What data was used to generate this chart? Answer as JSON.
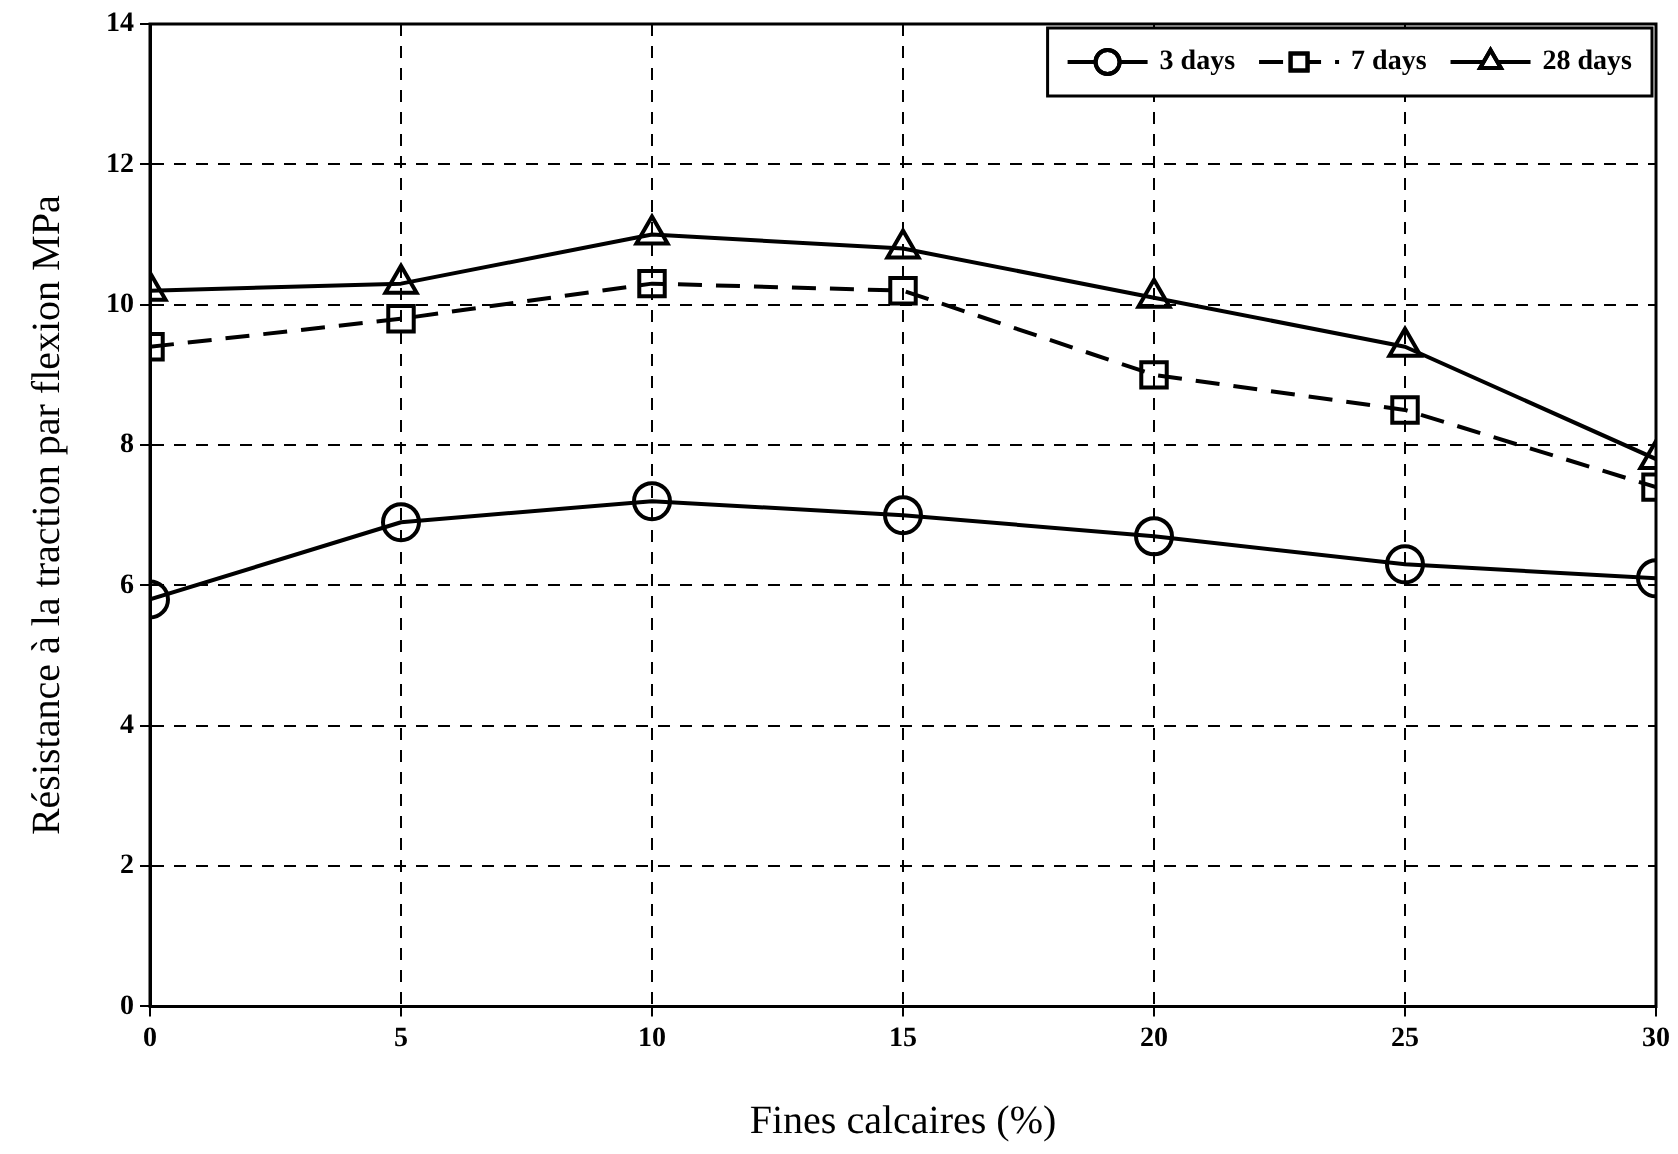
{
  "chart_data": {
    "type": "line",
    "xlabel": "Fines calcaires (%)",
    "ylabel": "Résistance à la traction par flexion MPa",
    "x": [
      0,
      5,
      10,
      15,
      20,
      25,
      30
    ],
    "series": [
      {
        "name": "3 days",
        "color": "#000000",
        "marker": "circle",
        "line_style": "solid",
        "values": [
          5.8,
          6.9,
          7.2,
          7.0,
          6.7,
          6.3,
          6.1
        ]
      },
      {
        "name": "7 days",
        "color": "#000000",
        "marker": "square",
        "line_style": "dashed",
        "values": [
          9.4,
          9.8,
          10.3,
          10.2,
          9.0,
          8.5,
          7.4
        ]
      },
      {
        "name": "28 days",
        "color": "#000000",
        "marker": "triangle",
        "line_style": "solid",
        "values": [
          10.2,
          10.3,
          11.0,
          10.8,
          10.1,
          9.4,
          7.8
        ]
      }
    ],
    "xlim": [
      0,
      30
    ],
    "xticks": [
      0,
      5,
      10,
      15,
      20,
      25,
      30
    ],
    "ylim": [
      0,
      14
    ],
    "yticks": [
      0,
      2,
      4,
      6,
      8,
      10,
      12,
      14
    ],
    "grid": true,
    "legend": "top right"
  }
}
